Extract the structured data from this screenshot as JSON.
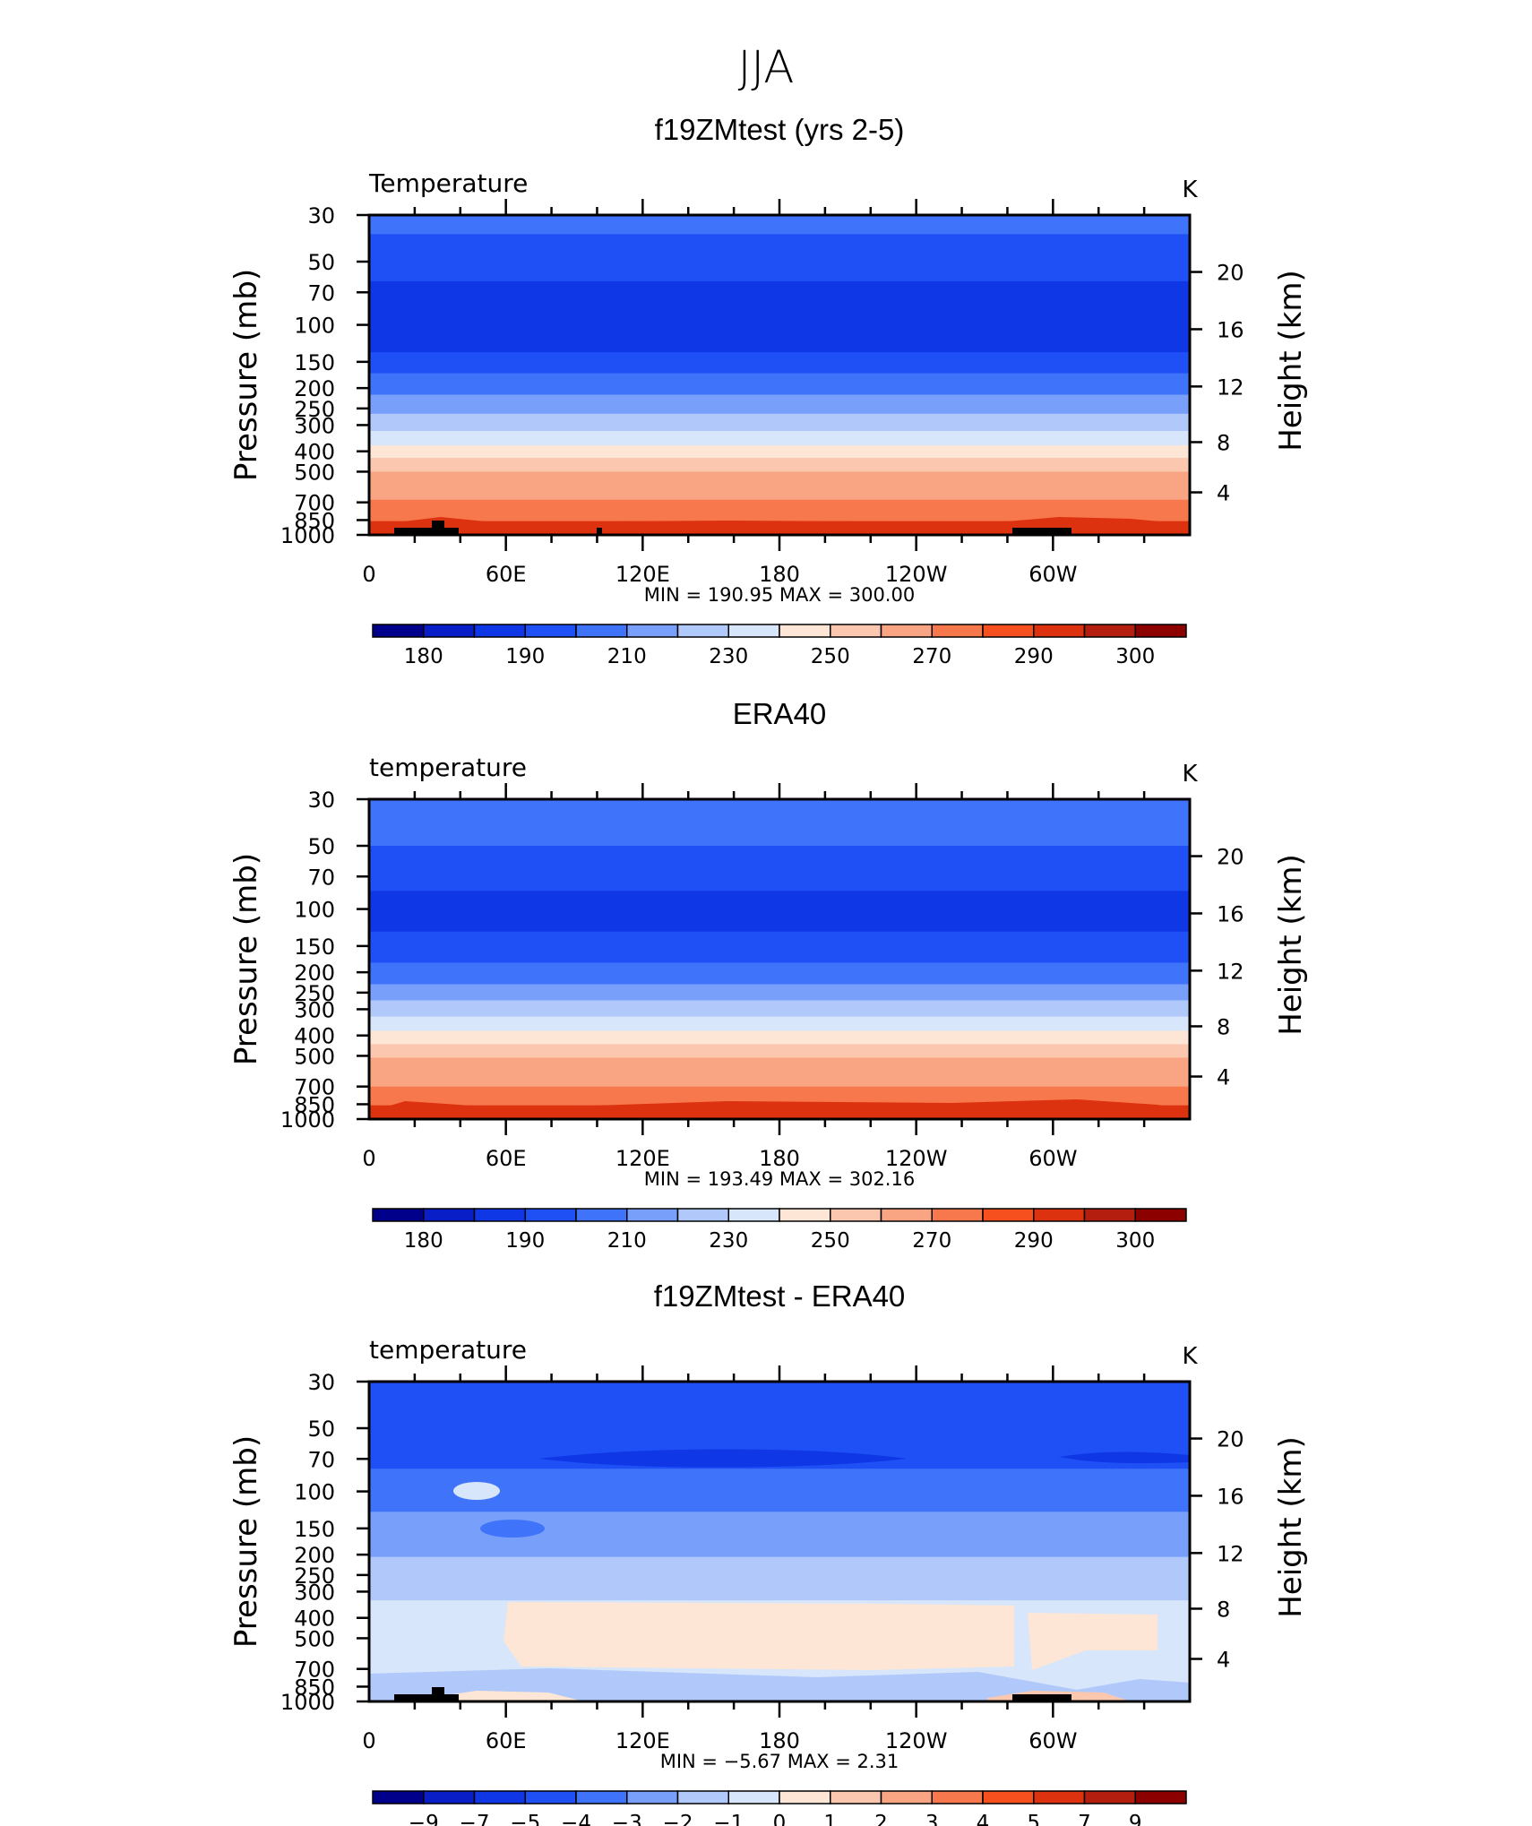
{
  "figure": {
    "title": "JJA"
  },
  "chart_data": [
    {
      "type": "heatmap",
      "title": "f19ZMtest (yrs 2-5)",
      "field_label": "Temperature",
      "units": "K",
      "ylabel": "Pressure (mb)",
      "y2label": "Height (km)",
      "x_ticks": [
        "0",
        "60E",
        "120E",
        "180",
        "120W",
        "60W"
      ],
      "y_ticks": [
        "30",
        "50",
        "70",
        "100",
        "150",
        "200",
        "250",
        "300",
        "400",
        "500",
        "700",
        "850",
        "1000"
      ],
      "y_tick_values": [
        30,
        50,
        70,
        100,
        150,
        200,
        250,
        300,
        400,
        500,
        700,
        850,
        1000
      ],
      "y2_ticks": [
        "20",
        "16",
        "12",
        "8",
        "4"
      ],
      "ylim": [
        1000,
        30
      ],
      "y_scale": "log",
      "stats": "MIN  =  190.95    MAX  =  300.00",
      "colorbar_labels": [
        "180",
        "190",
        "210",
        "230",
        "250",
        "270",
        "290",
        "300"
      ],
      "bands": [
        {
          "p_top": 30,
          "p_bot": 37,
          "value": 210
        },
        {
          "p_top": 37,
          "p_bot": 62,
          "value": 200
        },
        {
          "p_top": 62,
          "p_bot": 135,
          "value": 190
        },
        {
          "p_top": 135,
          "p_bot": 170,
          "value": 200
        },
        {
          "p_top": 170,
          "p_bot": 215,
          "value": 210
        },
        {
          "p_top": 215,
          "p_bot": 265,
          "value": 220
        },
        {
          "p_top": 265,
          "p_bot": 320,
          "value": 230
        },
        {
          "p_top": 320,
          "p_bot": 375,
          "value": 240
        },
        {
          "p_top": 375,
          "p_bot": 430,
          "value": 250
        },
        {
          "p_top": 430,
          "p_bot": 500,
          "value": 260
        },
        {
          "p_top": 500,
          "p_bot": 580,
          "value": 270
        },
        {
          "p_top": 580,
          "p_bot": 680,
          "value": 275
        },
        {
          "p_top": 680,
          "p_bot": 860,
          "value": 280
        },
        {
          "p_top": 860,
          "p_bot": 1000,
          "value": 290
        }
      ],
      "topography": true
    },
    {
      "type": "heatmap",
      "title": "ERA40",
      "field_label": "temperature",
      "units": "K",
      "ylabel": "Pressure (mb)",
      "y2label": "Height (km)",
      "x_ticks": [
        "0",
        "60E",
        "120E",
        "180",
        "120W",
        "60W"
      ],
      "y_ticks": [
        "30",
        "50",
        "70",
        "100",
        "150",
        "200",
        "250",
        "300",
        "400",
        "500",
        "700",
        "850",
        "1000"
      ],
      "y_tick_values": [
        30,
        50,
        70,
        100,
        150,
        200,
        250,
        300,
        400,
        500,
        700,
        850,
        1000
      ],
      "y2_ticks": [
        "20",
        "16",
        "12",
        "8",
        "4"
      ],
      "ylim": [
        1000,
        30
      ],
      "y_scale": "log",
      "stats": "MIN  =  193.49    MAX  =  302.16",
      "colorbar_labels": [
        "180",
        "190",
        "210",
        "230",
        "250",
        "270",
        "290",
        "300"
      ],
      "bands": [
        {
          "p_top": 30,
          "p_bot": 50,
          "value": 210
        },
        {
          "p_top": 50,
          "p_bot": 82,
          "value": 200
        },
        {
          "p_top": 82,
          "p_bot": 128,
          "value": 190
        },
        {
          "p_top": 128,
          "p_bot": 180,
          "value": 200
        },
        {
          "p_top": 180,
          "p_bot": 228,
          "value": 210
        },
        {
          "p_top": 228,
          "p_bot": 272,
          "value": 220
        },
        {
          "p_top": 272,
          "p_bot": 325,
          "value": 230
        },
        {
          "p_top": 325,
          "p_bot": 380,
          "value": 240
        },
        {
          "p_top": 380,
          "p_bot": 440,
          "value": 250
        },
        {
          "p_top": 440,
          "p_bot": 510,
          "value": 260
        },
        {
          "p_top": 510,
          "p_bot": 600,
          "value": 270
        },
        {
          "p_top": 600,
          "p_bot": 700,
          "value": 275
        },
        {
          "p_top": 700,
          "p_bot": 860,
          "value": 280
        },
        {
          "p_top": 860,
          "p_bot": 1000,
          "value": 290
        }
      ],
      "topography": false
    },
    {
      "type": "heatmap",
      "title": "f19ZMtest - ERA40",
      "field_label": "temperature",
      "units": "K",
      "ylabel": "Pressure (mb)",
      "y2label": "Height (km)",
      "x_ticks": [
        "0",
        "60E",
        "120E",
        "180",
        "120W",
        "60W"
      ],
      "y_ticks": [
        "30",
        "50",
        "70",
        "100",
        "150",
        "200",
        "250",
        "300",
        "400",
        "500",
        "700",
        "850",
        "1000"
      ],
      "y_tick_values": [
        30,
        50,
        70,
        100,
        150,
        200,
        250,
        300,
        400,
        500,
        700,
        850,
        1000
      ],
      "y2_ticks": [
        "20",
        "16",
        "12",
        "8",
        "4"
      ],
      "ylim": [
        1000,
        30
      ],
      "y_scale": "log",
      "stats": "MIN  =   −5.67    MAX  =     2.31",
      "colorbar_labels": [
        "−9",
        "−7",
        "−5",
        "−4",
        "−3",
        "−2",
        "−1",
        "0",
        "1",
        "2",
        "3",
        "4",
        "5",
        "7",
        "9"
      ],
      "bands": [
        {
          "p_top": 30,
          "p_bot": 60,
          "value": -5
        },
        {
          "p_top": 60,
          "p_bot": 78,
          "value": -5
        },
        {
          "p_top": 78,
          "p_bot": 125,
          "value": -4
        },
        {
          "p_top": 125,
          "p_bot": 205,
          "value": -3
        },
        {
          "p_top": 205,
          "p_bot": 330,
          "value": -2
        },
        {
          "p_top": 330,
          "p_bot": 640,
          "value": -1
        },
        {
          "p_top": 640,
          "p_bot": 880,
          "value": -1
        },
        {
          "p_top": 880,
          "p_bot": 1000,
          "value": 0
        }
      ],
      "topography": true
    }
  ],
  "palette_colors": [
    "#00008b",
    "#0a1ec8",
    "#0f37e6",
    "#1e50f5",
    "#3f73fa",
    "#78a0fa",
    "#b0c8fa",
    "#d7e6fa",
    "#fde6d5",
    "#fbc8af",
    "#f9a482",
    "#f8784e",
    "#f5501e",
    "#dc320f",
    "#b41e0f",
    "#8c0000"
  ]
}
